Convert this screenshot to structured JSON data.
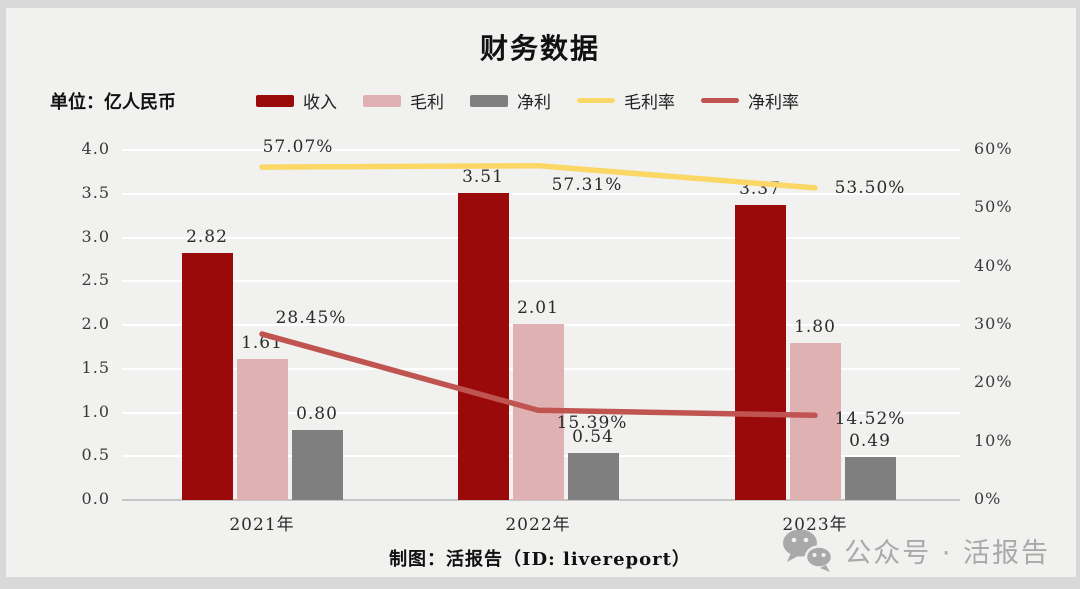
{
  "title": "财务数据",
  "unit_label": "单位：亿人民币",
  "footer": "制图：活报告（ID: livereport）",
  "watermark": {
    "icon": "wechat-icon",
    "text": "公众号 · 活报告"
  },
  "colors": {
    "canvas_bg": "#f1f1f0",
    "frame_bg": "#d9d9d9",
    "gridline": "#ffffff",
    "axis_line": "#c6c6c6",
    "revenue": "#9b0a0b",
    "gross_profit": "#e0b1b3",
    "net_profit": "#7f7f7f",
    "gross_margin": "#fbd766",
    "net_margin": "#bf5450",
    "watermark_gray": "#a9a9a9"
  },
  "chart_data": {
    "type": "bar+line combo",
    "title": "财务数据",
    "categories": [
      "2021年",
      "2022年",
      "2023年"
    ],
    "series": [
      {
        "key": "revenue",
        "name": "收入",
        "type": "bar",
        "axis": "left",
        "color": "#9b0a0b",
        "values": [
          2.82,
          3.51,
          3.37
        ],
        "labels": [
          "2.82",
          "3.51",
          "3.37"
        ]
      },
      {
        "key": "gross-profit",
        "name": "毛利",
        "type": "bar",
        "axis": "left",
        "color": "#e0b1b3",
        "values": [
          1.61,
          2.01,
          1.8
        ],
        "labels": [
          "1.61",
          "2.01",
          "1.80"
        ]
      },
      {
        "key": "net-profit",
        "name": "净利",
        "type": "bar",
        "axis": "left",
        "color": "#7f7f7f",
        "values": [
          0.8,
          0.54,
          0.49
        ],
        "labels": [
          "0.80",
          "0.54",
          "0.49"
        ]
      },
      {
        "key": "gross-margin",
        "name": "毛利率",
        "type": "line",
        "axis": "right",
        "color": "#fbd766",
        "values": [
          57.07,
          57.31,
          53.5
        ],
        "labels": [
          "57.07%",
          "57.31%",
          "53.50%"
        ]
      },
      {
        "key": "net-margin",
        "name": "净利率",
        "type": "line",
        "axis": "right",
        "color": "#bf5450",
        "values": [
          28.45,
          15.39,
          14.52
        ],
        "labels": [
          "28.45%",
          "15.39%",
          "14.52%"
        ]
      }
    ],
    "left_axis": {
      "ticks": [
        "4.0",
        "3.5",
        "3.0",
        "2.5",
        "2.0",
        "1.5",
        "1.0",
        "0.5",
        "0.0"
      ],
      "min": 0,
      "max": 4
    },
    "right_axis": {
      "ticks": [
        "60%",
        "50%",
        "40%",
        "30%",
        "20%",
        "10%",
        "0%"
      ],
      "min": 0,
      "max": 60
    },
    "grid": true,
    "legend_position": "top"
  }
}
